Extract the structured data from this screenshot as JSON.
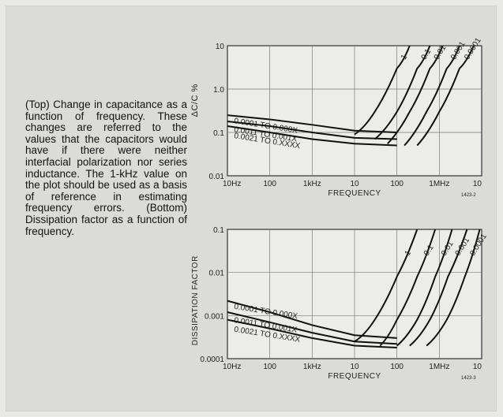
{
  "caption": "(Top) Change in capacitance as a function of frequency. These changes are referred to the values that the capacitors would have if there were neither interfacial polarization nor series inductance. The 1-kHz value on the plot should be used as a basis of reference in estimating frequency errors. (Bottom) Dissipation factor as a function of frequency.",
  "chart_data": [
    {
      "type": "line",
      "xlabel": "FREQUENCY",
      "ylabel": "ΔC/C %",
      "x_scale": "log",
      "y_scale": "log",
      "xlim": [
        10,
        10000000
      ],
      "ylim": [
        0.01,
        10
      ],
      "x_tick_labels": [
        "10Hz",
        "100",
        "1kHz",
        "10",
        "100",
        "1MHz",
        "10"
      ],
      "y_tick_labels": [
        "10",
        "1.0",
        "0.1",
        "0.01"
      ],
      "figure_code": "1423-2",
      "series": [
        {
          "name": "0.0001 TO 0.000X",
          "x": [
            10,
            100,
            1000,
            10000,
            100000
          ],
          "y": [
            0.25,
            0.2,
            0.15,
            0.11,
            0.1
          ]
        },
        {
          "name": "0.0011 TO 0.001X",
          "x": [
            10,
            100,
            1000,
            10000,
            100000
          ],
          "y": [
            0.18,
            0.14,
            0.1,
            0.075,
            0.07
          ]
        },
        {
          "name": "0.0021 TO 0.XXXX",
          "x": [
            10,
            100,
            1000,
            10000,
            100000
          ],
          "y": [
            0.14,
            0.1,
            0.07,
            0.055,
            0.05
          ]
        },
        {
          "name": "1",
          "x": [
            10000,
            30000,
            100000,
            200000
          ],
          "y": [
            0.09,
            0.3,
            3,
            10
          ]
        },
        {
          "name": "0.1",
          "x": [
            30000,
            100000,
            300000,
            600000
          ],
          "y": [
            0.07,
            0.3,
            3,
            10
          ]
        },
        {
          "name": "0.01",
          "x": [
            60000,
            200000,
            600000,
            1200000
          ],
          "y": [
            0.055,
            0.3,
            3,
            10
          ]
        },
        {
          "name": "0.001",
          "x": [
            150000,
            500000,
            1500000,
            3000000
          ],
          "y": [
            0.05,
            0.3,
            3,
            10
          ]
        },
        {
          "name": "0.0001",
          "x": [
            300000,
            1000000,
            3000000,
            6500000
          ],
          "y": [
            0.05,
            0.3,
            3,
            10
          ]
        }
      ]
    },
    {
      "type": "line",
      "xlabel": "FREQUENCY",
      "ylabel": "DISSIPATION FACTOR",
      "x_scale": "log",
      "y_scale": "log",
      "xlim": [
        10,
        10000000
      ],
      "ylim": [
        0.0001,
        0.1
      ],
      "x_tick_labels": [
        "10Hz",
        "100",
        "1kHz",
        "10",
        "100",
        "1MHz",
        "10"
      ],
      "y_tick_labels": [
        "0.1",
        "0.01",
        "0.001",
        "0.0001"
      ],
      "figure_code": "1423-3",
      "series": [
        {
          "name": "0.0001 TO 0.000X",
          "x": [
            10,
            100,
            1000,
            10000,
            100000
          ],
          "y": [
            0.0022,
            0.0012,
            0.0006,
            0.00035,
            0.0003
          ]
        },
        {
          "name": "0.0011 TO 0.001X",
          "x": [
            10,
            100,
            1000,
            10000,
            100000
          ],
          "y": [
            0.0012,
            0.0007,
            0.0004,
            0.00025,
            0.00022
          ]
        },
        {
          "name": "0.0021 TO 0.XXXX",
          "x": [
            10,
            100,
            1000,
            10000,
            100000
          ],
          "y": [
            0.0008,
            0.0005,
            0.0003,
            0.0002,
            0.00018
          ]
        },
        {
          "name": "1",
          "x": [
            10000,
            30000,
            100000,
            300000
          ],
          "y": [
            0.00025,
            0.0008,
            0.008,
            0.1
          ]
        },
        {
          "name": "0.1",
          "x": [
            40000,
            100000,
            300000,
            800000
          ],
          "y": [
            0.0002,
            0.0008,
            0.008,
            0.1
          ]
        },
        {
          "name": "0.01",
          "x": [
            100000,
            300000,
            800000,
            2000000
          ],
          "y": [
            0.0002,
            0.0008,
            0.008,
            0.1
          ]
        },
        {
          "name": "0.001",
          "x": [
            200000,
            600000,
            1600000,
            4500000
          ],
          "y": [
            0.0002,
            0.0008,
            0.008,
            0.1
          ]
        },
        {
          "name": "0.0001",
          "x": [
            500000,
            1500000,
            4000000,
            9000000
          ],
          "y": [
            0.0002,
            0.0008,
            0.008,
            0.1
          ]
        }
      ]
    }
  ]
}
